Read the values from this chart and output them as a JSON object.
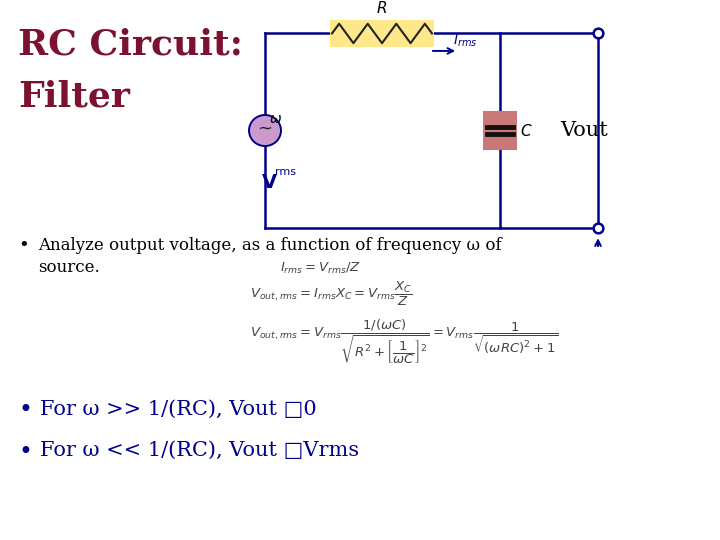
{
  "title_line1": "RC Circuit:",
  "title_line2": "Filter",
  "title_color": "#7B1230",
  "background_color": "#FFFFFF",
  "wire_color": "#00008B",
  "resistor_bg": "#FFE88A",
  "capacitor_bg": "#CC7777",
  "source_color": "#CC99CC",
  "label_color": "#00008B",
  "bullet_color": "#00008B",
  "eq_color": "#444444",
  "text_color": "#000000",
  "bullet1_line1": "Analyze output voltage, as a function of frequency ω of",
  "bullet1_line2": "source.",
  "bullet2": "For ω >> 1/(RC), Vout □0",
  "bullet3": "For ω << 1/(RC), Vout □Vrms"
}
